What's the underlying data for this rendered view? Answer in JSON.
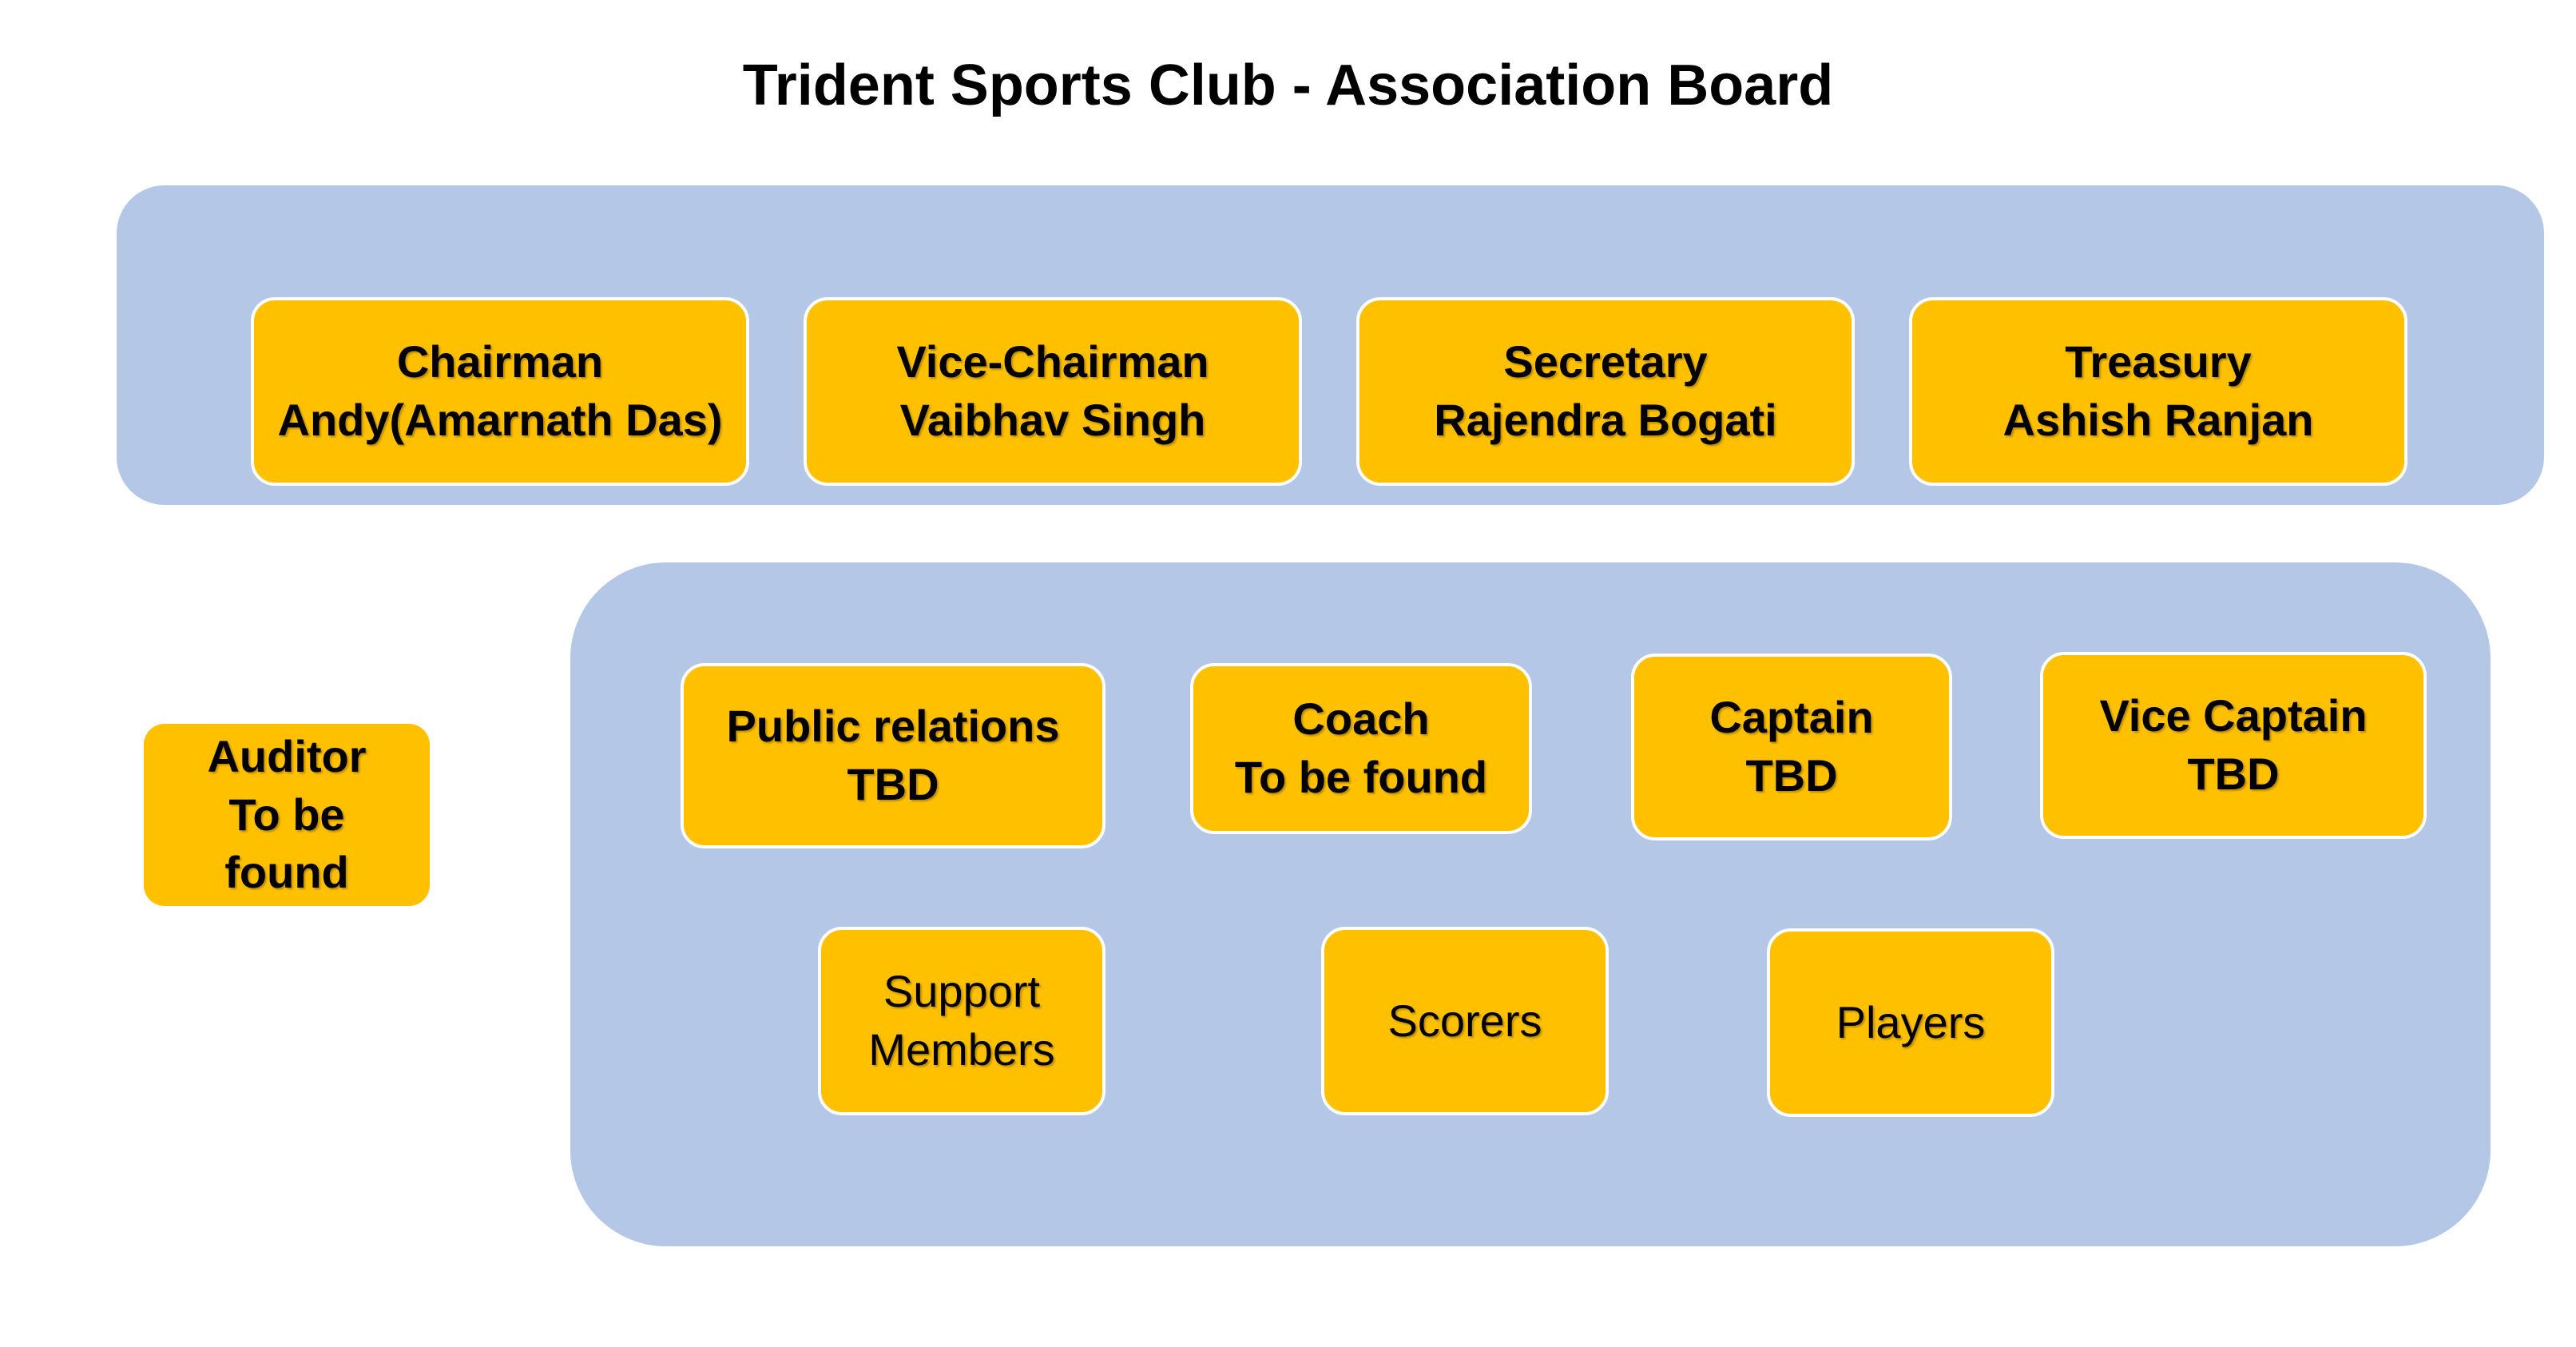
{
  "title": "Trident Sports Club - Association Board",
  "board": {
    "chairman": {
      "role": "Chairman",
      "name": "Andy(Amarnath Das)"
    },
    "vice_chairman": {
      "role": "Vice-Chairman",
      "name": "Vaibhav Singh"
    },
    "secretary": {
      "role": "Secretary",
      "name": "Rajendra Bogati"
    },
    "treasury": {
      "role": "Treasury",
      "name": "Ashish Ranjan"
    }
  },
  "auditor": {
    "line1": "Auditor",
    "line2": "To be",
    "line3": "found"
  },
  "team": {
    "public_relations": {
      "role": "Public relations",
      "name": "TBD"
    },
    "coach": {
      "role": "Coach",
      "name": "To be found"
    },
    "captain": {
      "role": "Captain",
      "name": "TBD"
    },
    "vice_captain": {
      "role": "Vice Captain",
      "name": "TBD"
    },
    "support_members": {
      "line1": "Support",
      "line2": "Members"
    },
    "scorers": {
      "label": "Scorers"
    },
    "players": {
      "label": "Players"
    }
  },
  "colors": {
    "panel": "#b4c7e7",
    "box": "#ffc000",
    "box_border": "#ffffff"
  }
}
